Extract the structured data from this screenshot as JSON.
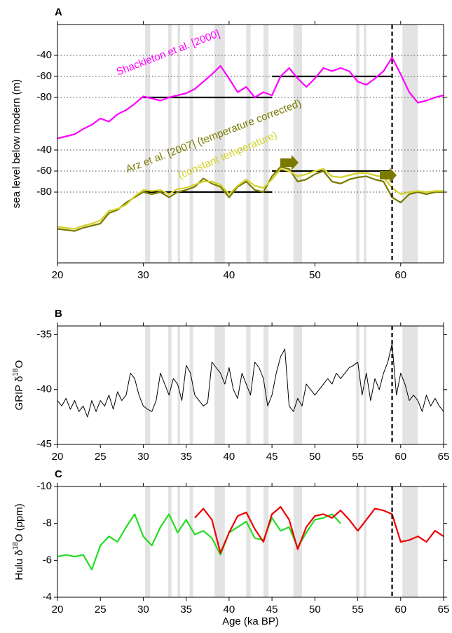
{
  "chart_data": [
    {
      "type": "line",
      "label": "A",
      "ylabel": "sea level below modern (m)",
      "xlim": [
        20,
        65
      ],
      "xticks": [
        20,
        30,
        40,
        50,
        60
      ],
      "ylim": [
        -237.3,
        -10.7
      ],
      "yticks": [
        -40,
        -60,
        -80
      ],
      "y2lim": [
        -147.3,
        79.3
      ],
      "y2ticks": [
        -40,
        -60,
        -80
      ],
      "grid": true,
      "shaded_regions": [
        [
          30.2,
          30.8
        ],
        [
          32.9,
          33.3
        ],
        [
          34,
          34.3
        ],
        [
          35.4,
          35.8
        ],
        [
          38.3,
          39.5
        ],
        [
          42,
          42.5
        ],
        [
          44,
          44.6
        ],
        [
          47.5,
          48.5
        ],
        [
          54.8,
          55.2
        ],
        [
          55.7,
          56
        ],
        [
          60.2,
          62
        ]
      ],
      "dashed_line_x": 59,
      "ref_segments": [
        {
          "x": [
            30,
            45
          ],
          "y": -80,
          "axis": "y"
        },
        {
          "x": [
            45,
            59
          ],
          "y": -60,
          "axis": "y"
        },
        {
          "x": [
            30,
            45
          ],
          "y": -80,
          "axis": "y2"
        },
        {
          "x": [
            45,
            59
          ],
          "y": -60,
          "axis": "y2"
        }
      ],
      "series": [
        {
          "name": "Shackleton et al. [2000]",
          "color": "#ff00ff",
          "axis": "y",
          "x": [
            20,
            21,
            22,
            23,
            24,
            25,
            26,
            27,
            28,
            29,
            30,
            31,
            32,
            33,
            34,
            35,
            36,
            37,
            38,
            39,
            40,
            41,
            42,
            43,
            44,
            45,
            46,
            47,
            48,
            49,
            50,
            51,
            52,
            53,
            54,
            55,
            56,
            57,
            58,
            59,
            60,
            61,
            62,
            63,
            64,
            65
          ],
          "values": [
            -119,
            -117,
            -115,
            -110,
            -106,
            -100,
            -103,
            -96,
            -92,
            -86,
            -79,
            -81,
            -83,
            -80,
            -78,
            -76,
            -72,
            -65,
            -58,
            -50,
            -62,
            -75,
            -70,
            -80,
            -75,
            -78,
            -60,
            -52,
            -62,
            -70,
            -62,
            -52,
            -55,
            -52,
            -55,
            -65,
            -68,
            -62,
            -55,
            -42,
            -58,
            -75,
            -85,
            -83,
            -80,
            -78
          ]
        },
        {
          "name": "Arz et al. [2007] (temperature corrected)",
          "color": "#7a7a00",
          "axis": "y2",
          "x": [
            20,
            21,
            22,
            23,
            24,
            25,
            26,
            27,
            28,
            29,
            30,
            31,
            32,
            33,
            34,
            35,
            36,
            37,
            38,
            39,
            40,
            41,
            42,
            43,
            44,
            45,
            46,
            47,
            48,
            49,
            50,
            51,
            52,
            53,
            54,
            55,
            56,
            57,
            58,
            59,
            60,
            61,
            62,
            63,
            64,
            65
          ],
          "values": [
            -115,
            -116,
            -117,
            -114,
            -112,
            -110,
            -100,
            -97,
            -90,
            -85,
            -80,
            -82,
            -80,
            -85,
            -80,
            -78,
            -75,
            -67,
            -72,
            -75,
            -85,
            -75,
            -70,
            -78,
            -80,
            -65,
            -56,
            -58,
            -70,
            -68,
            -63,
            -60,
            -70,
            -72,
            -68,
            -66,
            -65,
            -68,
            -70,
            -85,
            -90,
            -82,
            -80,
            -82,
            -80,
            -80
          ]
        },
        {
          "name": "(constant temperature)",
          "color": "#d2d22a",
          "axis": "y2",
          "x": [
            20,
            21,
            22,
            23,
            24,
            25,
            26,
            27,
            28,
            29,
            30,
            31,
            32,
            33,
            34,
            35,
            36,
            37,
            38,
            39,
            40,
            41,
            42,
            43,
            44,
            45,
            46,
            47,
            48,
            49,
            50,
            51,
            52,
            53,
            54,
            55,
            56,
            57,
            58,
            59,
            60,
            61,
            62,
            63,
            64,
            65
          ],
          "values": [
            -113,
            -114,
            -115,
            -112,
            -110,
            -107,
            -98,
            -96,
            -92,
            -84,
            -78,
            -79,
            -78,
            -82,
            -77,
            -76,
            -73,
            -70,
            -70,
            -73,
            -82,
            -74,
            -68,
            -74,
            -76,
            -68,
            -58,
            -60,
            -65,
            -63,
            -60,
            -58,
            -65,
            -66,
            -64,
            -62,
            -62,
            -64,
            -66,
            -76,
            -82,
            -80,
            -79,
            -80,
            -79,
            -79
          ]
        }
      ]
    },
    {
      "type": "line",
      "label": "B",
      "ylabel": [
        "GRIP δ",
        "18",
        "O"
      ],
      "xlim": [
        20,
        65
      ],
      "xticks": [
        20,
        25,
        30,
        35,
        40,
        45,
        50,
        55,
        60,
        65
      ],
      "ylim": [
        -45,
        -34.2
      ],
      "yticks": [
        -35,
        -40,
        -45
      ],
      "series": [
        {
          "color": "#000000",
          "x": [
            20,
            20.5,
            21,
            21.5,
            22,
            22.5,
            23,
            23.5,
            24,
            24.5,
            25,
            25.5,
            26,
            26.5,
            27,
            27.5,
            28,
            28.5,
            29,
            29.5,
            30,
            30.5,
            31,
            31.5,
            32,
            32.5,
            33,
            33.5,
            34,
            34.5,
            35,
            35.5,
            36,
            36.5,
            37,
            37.5,
            38,
            38.5,
            39,
            39.5,
            40,
            40.5,
            41,
            41.5,
            42,
            42.5,
            43,
            43.5,
            44,
            44.5,
            45,
            45.5,
            46,
            46.5,
            47,
            47.5,
            48,
            48.5,
            49,
            49.5,
            50,
            50.5,
            51,
            51.5,
            52,
            52.5,
            53,
            53.5,
            54,
            54.5,
            55,
            55.5,
            56,
            56.5,
            57,
            57.5,
            58,
            58.5,
            59,
            59.5,
            60,
            60.5,
            61,
            61.5,
            62,
            62.5,
            63,
            63.5,
            64,
            64.5,
            65
          ],
          "values": [
            -41,
            -41.5,
            -40.8,
            -41.8,
            -41,
            -42,
            -41.5,
            -42.5,
            -41,
            -42,
            -41,
            -41.5,
            -40.5,
            -41.8,
            -40.2,
            -41,
            -40.5,
            -38.5,
            -39,
            -40.5,
            -41.5,
            -41.8,
            -42,
            -41,
            -38.5,
            -39.5,
            -40.5,
            -39,
            -39.5,
            -41,
            -37.8,
            -38.5,
            -40.5,
            -41,
            -41.5,
            -41.2,
            -37.5,
            -38,
            -38.5,
            -39.5,
            -38,
            -40,
            -40.8,
            -38.5,
            -39.5,
            -40.5,
            -37.5,
            -38,
            -39,
            -41.5,
            -40.5,
            -38.5,
            -37,
            -36.3,
            -41.5,
            -42,
            -40.8,
            -41.5,
            -39.5,
            -40,
            -40.5,
            -40,
            -39.5,
            -39,
            -39.5,
            -38.5,
            -39,
            -38.5,
            -38,
            -37.8,
            -37.5,
            -40.5,
            -38.5,
            -41,
            -39,
            -40,
            -38.5,
            -37.5,
            -35.8,
            -40.5,
            -38.5,
            -39.5,
            -41,
            -40.5,
            -41,
            -42,
            -40.5,
            -41.5,
            -40.8,
            -41.5,
            -42
          ]
        }
      ]
    },
    {
      "type": "line",
      "label": "C",
      "ylabel": [
        "Hulu δ",
        "18",
        "O (ppm)"
      ],
      "xlabel": "Age (ka BP)",
      "xlim": [
        20,
        65
      ],
      "xticks": [
        20,
        25,
        30,
        35,
        40,
        45,
        50,
        55,
        60,
        65
      ],
      "ylim": [
        -4,
        -10
      ],
      "yticks": [
        -10,
        -8,
        -6,
        -4
      ],
      "series": [
        {
          "color": "#22dd22",
          "x": [
            20,
            21,
            22,
            23,
            24,
            25,
            26,
            27,
            28,
            29,
            30,
            31,
            32,
            33,
            34,
            35,
            36,
            37,
            38,
            39,
            40,
            41,
            42,
            43,
            44,
            45,
            46,
            47,
            48,
            49,
            50,
            51,
            52,
            53
          ],
          "values": [
            -6.2,
            -6.3,
            -6.2,
            -6.3,
            -5.5,
            -6.8,
            -7.3,
            -7,
            -7.8,
            -8.5,
            -7.3,
            -6.8,
            -7.8,
            -8.5,
            -7.5,
            -8.2,
            -7.4,
            -7.6,
            -7.2,
            -6.3,
            -7.5,
            -7.8,
            -8.1,
            -7.2,
            -7.1,
            -8.3,
            -7.6,
            -7.8,
            -6.7,
            -7.5,
            -8.2,
            -8.3,
            -8.5,
            -8
          ]
        },
        {
          "color": "#ee0000",
          "x": [
            36,
            37,
            38,
            39,
            40,
            41,
            42,
            43,
            44,
            45,
            46,
            47,
            48,
            49,
            50,
            51,
            52,
            53,
            54,
            55,
            56,
            57,
            58,
            59,
            60,
            61,
            62,
            63,
            64,
            65
          ],
          "values": [
            -8.3,
            -8.8,
            -8.2,
            -6.4,
            -7.5,
            -8.4,
            -8.6,
            -7.7,
            -7,
            -8.5,
            -8.9,
            -8.2,
            -6.6,
            -7.8,
            -8.4,
            -8.5,
            -8.3,
            -8.7,
            -8.2,
            -7.6,
            -8.2,
            -8.8,
            -8.7,
            -8.5,
            -7,
            -7.1,
            -7.3,
            -7,
            -7.6,
            -7.3
          ]
        }
      ]
    }
  ]
}
